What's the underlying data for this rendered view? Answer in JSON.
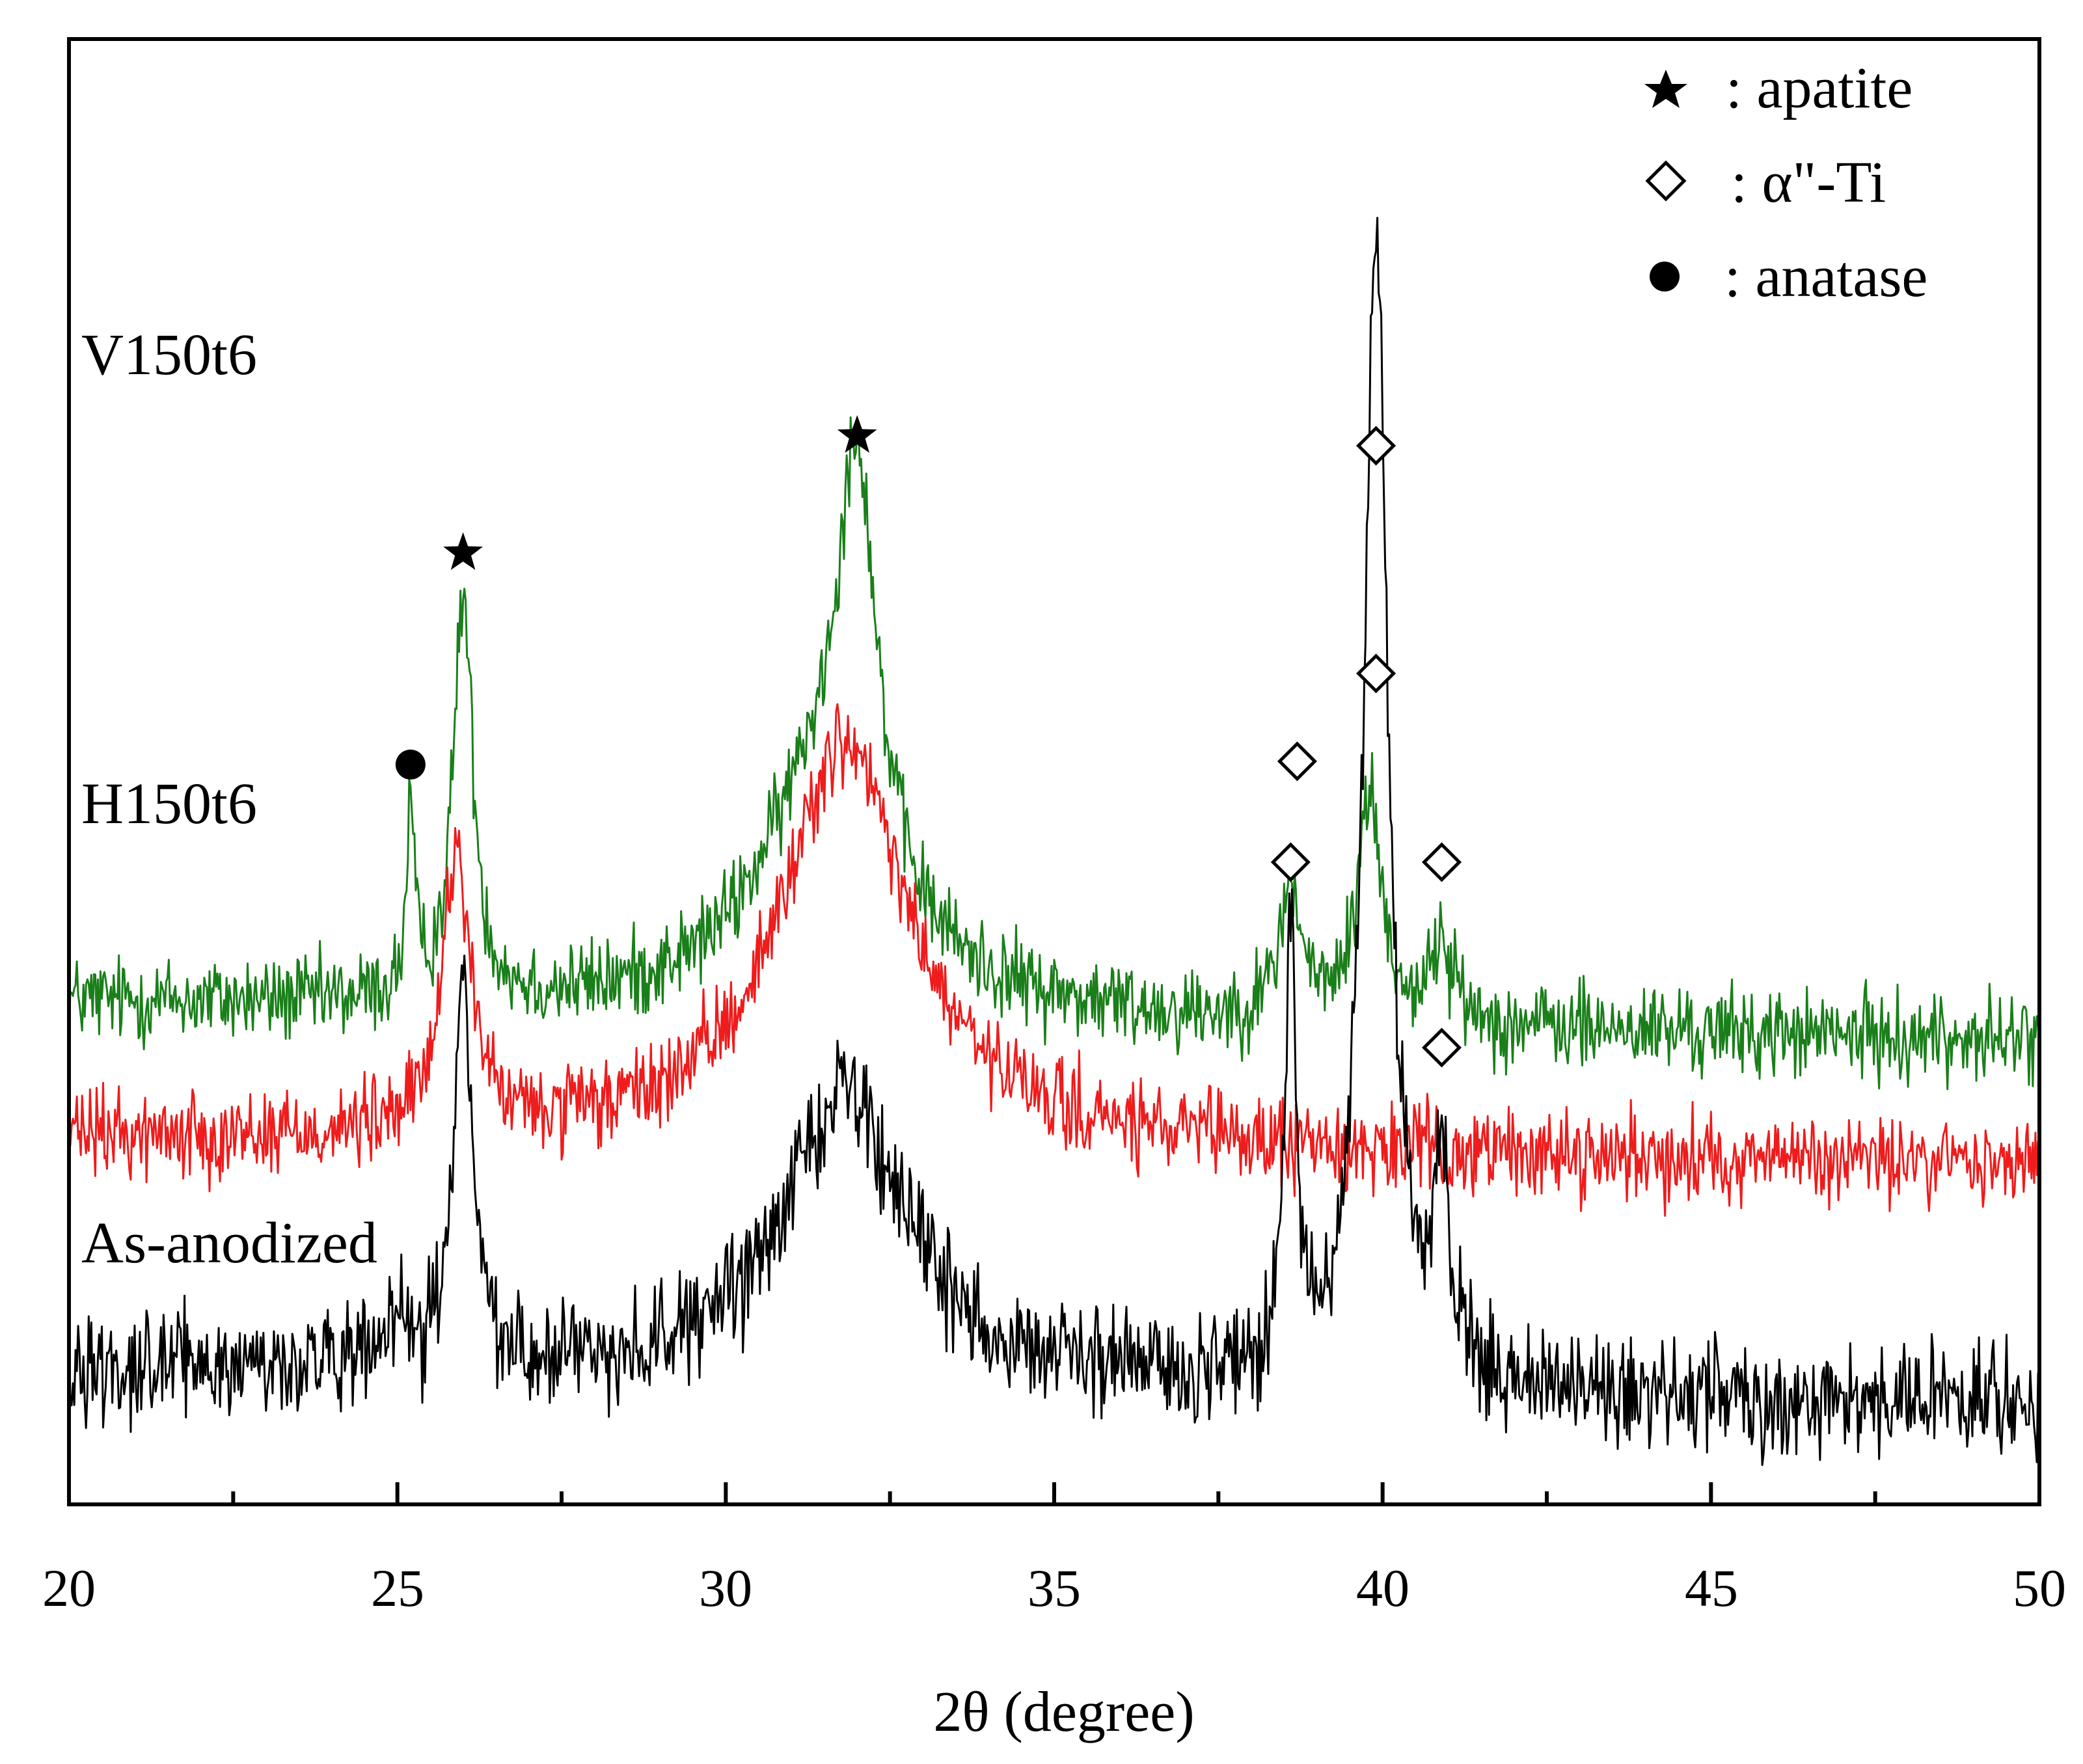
{
  "chart_data": {
    "type": "line",
    "title": "",
    "xlabel": "2θ (degree)",
    "ylabel": "",
    "xlim": [
      20,
      50
    ],
    "x_ticks": [
      "20",
      "25",
      "30",
      "35",
      "40",
      "45",
      "50"
    ],
    "grid": false,
    "legend": {
      "placement": "top-right",
      "entries": [
        {
          "marker": "★",
          "label": ": apatite"
        },
        {
          "marker": "◇",
          "label": ": α\"-Ti"
        },
        {
          "marker": "●",
          "label": ": anatase"
        }
      ]
    },
    "series": [
      {
        "name": "V150t6",
        "color": "#1a7f1a",
        "baseline": 0.73,
        "noise": 0.09,
        "slope": -0.06,
        "peaks": [
          [
            25.2,
            0.28,
            0.07
          ],
          [
            26.0,
            0.62,
            0.18
          ],
          [
            31.5,
            0.35,
            1.2
          ],
          [
            32.0,
            0.6,
            0.35
          ],
          [
            38.6,
            0.2,
            0.2
          ],
          [
            39.8,
            0.35,
            0.22
          ],
          [
            40.9,
            0.12,
            0.2
          ]
        ]
      },
      {
        "name": "H150t6",
        "color": "#ee1c1c",
        "baseline": 0.52,
        "noise": 0.09,
        "slope": -0.04,
        "peaks": [
          [
            25.9,
            0.44,
            0.25
          ],
          [
            31.8,
            0.62,
            1.2
          ]
        ]
      },
      {
        "name": "As-anodized",
        "color": "#000000",
        "baseline": 0.17,
        "noise": 0.11,
        "slope": -0.06,
        "peaks": [
          [
            25.0,
            0.06,
            0.15
          ],
          [
            26.0,
            0.58,
            0.18
          ],
          [
            31.8,
            0.45,
            1.1
          ],
          [
            38.6,
            0.68,
            0.1
          ],
          [
            39.9,
            1.78,
            0.22
          ],
          [
            40.9,
            0.3,
            0.15
          ]
        ]
      }
    ],
    "annotations": [
      {
        "series": "V150t6",
        "x": 25.2,
        "y": 1.095,
        "marker": "●"
      },
      {
        "series": "V150t6",
        "x": 26.0,
        "y": 1.42,
        "marker": "★"
      },
      {
        "series": "V150t6",
        "x": 32.0,
        "y": 1.6,
        "marker": "★"
      },
      {
        "series": "V150t6",
        "x": 38.6,
        "y": 0.945,
        "marker": "◇"
      },
      {
        "series": "V150t6",
        "x": 39.9,
        "y": 1.235,
        "marker": "◇"
      },
      {
        "series": "V150t6",
        "x": 40.9,
        "y": 0.945,
        "marker": "◇"
      },
      {
        "series": "As-anodized",
        "x": 38.7,
        "y": 1.1,
        "marker": "◇"
      },
      {
        "series": "As-anodized",
        "x": 39.9,
        "y": 1.585,
        "marker": "◇"
      },
      {
        "series": "As-anodized",
        "x": 40.9,
        "y": 0.66,
        "marker": "◇"
      }
    ]
  }
}
